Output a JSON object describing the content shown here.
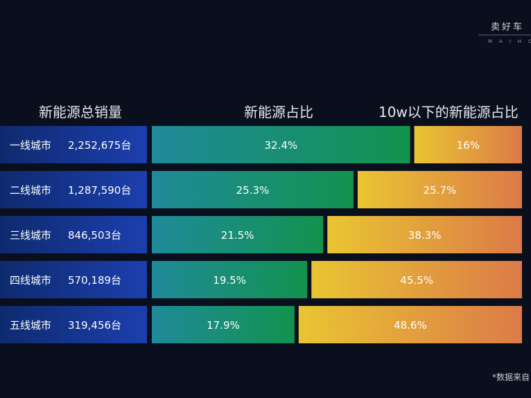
{
  "brand": {
    "name": "卖好车",
    "sub": "MAIHC"
  },
  "headers": {
    "left": "新能源总销量",
    "middle": "新能源占比",
    "right": "10w以下的新能源占比"
  },
  "footnote": "*数据来自",
  "colors": {
    "left_bar": [
      "#0e2a6e",
      "#1c3fae"
    ],
    "mid_bar": [
      "#1f8a9a",
      "#13924e"
    ],
    "right_bar": [
      "#e9c532",
      "#dc7a48"
    ]
  },
  "chart_data": {
    "type": "table",
    "rows": [
      {
        "tier": "一线城市",
        "sales": "2,252,675台",
        "nev_share": 32.4,
        "nev_share_label": "32.4%",
        "under10w_share": 16,
        "under10w_label": "16%"
      },
      {
        "tier": "二线城市",
        "sales": "1,287,590台",
        "nev_share": 25.3,
        "nev_share_label": "25.3%",
        "under10w_share": 25.7,
        "under10w_label": "25.7%"
      },
      {
        "tier": "三线城市",
        "sales": "846,503台",
        "nev_share": 21.5,
        "nev_share_label": "21.5%",
        "under10w_share": 38.3,
        "under10w_label": "38.3%"
      },
      {
        "tier": "四线城市",
        "sales": "570,189台",
        "nev_share": 19.5,
        "nev_share_label": "19.5%",
        "under10w_share": 45.5,
        "under10w_label": "45.5%"
      },
      {
        "tier": "五线城市",
        "sales": "319,456台",
        "nev_share": 17.9,
        "nev_share_label": "17.9%",
        "under10w_share": 48.6,
        "under10w_label": "48.6%"
      }
    ]
  }
}
